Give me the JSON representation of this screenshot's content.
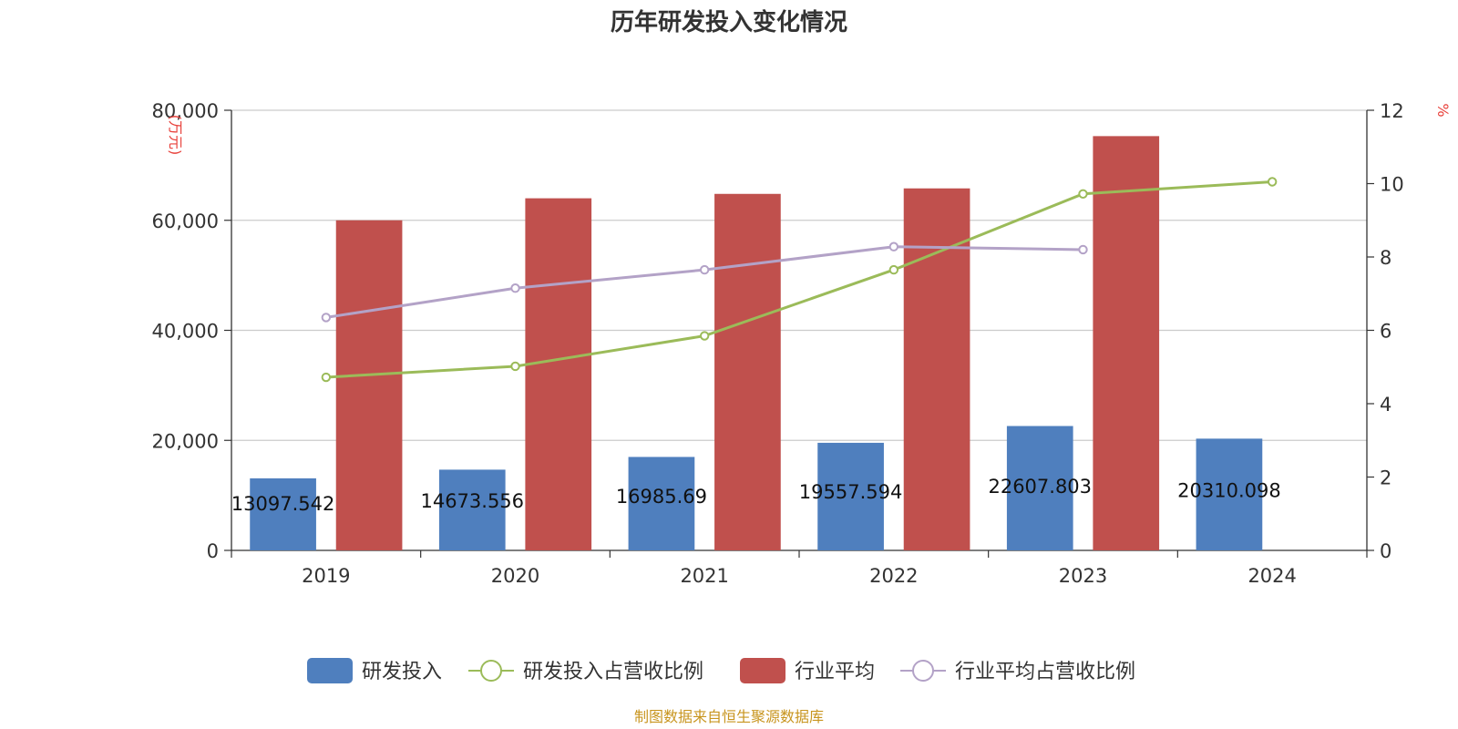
{
  "chart_data": {
    "type": "bar",
    "title": "历年研发投入变化情况",
    "categories": [
      "2019",
      "2020",
      "2021",
      "2022",
      "2023",
      "2024"
    ],
    "y_left": {
      "unit_label": "(万元)",
      "ylim": [
        0,
        80000
      ],
      "ticks": [
        "0",
        "20,000",
        "40,000",
        "60,000",
        "80,000"
      ]
    },
    "y_right": {
      "unit_label": "%",
      "ylim": [
        0,
        12
      ],
      "ticks": [
        "0",
        "2",
        "4",
        "6",
        "8",
        "10",
        "12"
      ]
    },
    "series": [
      {
        "name": "研发投入",
        "type": "bar",
        "axis": "left",
        "color": "#4f7fbe",
        "values": [
          13097.542,
          14673.556,
          16985.69,
          19557.594,
          22607.803,
          20310.098
        ],
        "labels": [
          "13097.542",
          "14673.556",
          "16985.69",
          "19557.594",
          "22607.803",
          "20310.098"
        ]
      },
      {
        "name": "研发投入占营收比例",
        "type": "line",
        "axis": "right",
        "color": "#9bbb59",
        "values": [
          4.72,
          5.02,
          5.85,
          7.65,
          9.72,
          10.05
        ]
      },
      {
        "name": "行业平均",
        "type": "bar",
        "axis": "left",
        "color": "#c0504d",
        "values": [
          60000,
          64000,
          64800,
          65800,
          75300,
          null
        ]
      },
      {
        "name": "行业平均占营收比例",
        "type": "line",
        "axis": "right",
        "color": "#b3a2c7",
        "values": [
          6.35,
          7.15,
          7.65,
          8.28,
          8.2,
          null
        ]
      }
    ],
    "grid": true,
    "legend_position": "bottom"
  },
  "source": "制图数据来自恒生聚源数据库"
}
